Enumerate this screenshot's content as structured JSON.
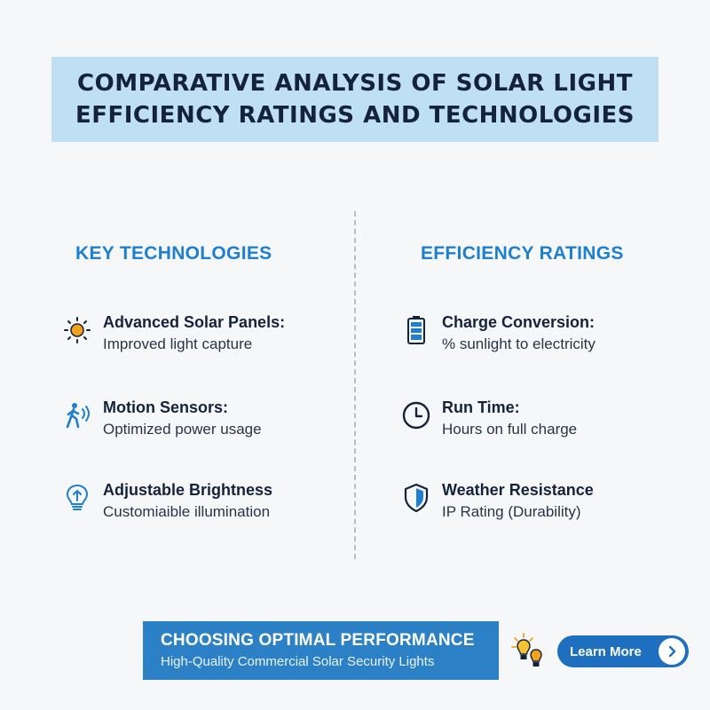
{
  "title": {
    "line1": "COMPARATIVE ANALYSIS OF SOLAR LIGHT",
    "line2": "EFFICIENCY RATINGS AND TECHNOLOGIES"
  },
  "left_column": {
    "heading": "KEY TECHNOLOGIES",
    "items": [
      {
        "label": "Advanced Solar Panels:",
        "desc": "Improved light capture",
        "icon": "sun-icon"
      },
      {
        "label": "Motion Sensors:",
        "desc": "Optimized power usage",
        "icon": "motion-sensor-icon"
      },
      {
        "label": "Adjustable Brightness",
        "desc": "Customiaible illumination",
        "icon": "lightbulb-icon"
      }
    ]
  },
  "right_column": {
    "heading": "EFFICIENCY RATINGS",
    "items": [
      {
        "label": "Charge Conversion:",
        "desc": "% sunlight to electricity",
        "icon": "battery-icon"
      },
      {
        "label": "Run Time:",
        "desc": "Hours on full charge",
        "icon": "clock-icon"
      },
      {
        "label": "Weather Resistance",
        "desc": "IP Rating (Durability)",
        "icon": "shield-icon"
      }
    ]
  },
  "cta": {
    "title": "CHOOSING OPTIMAL PERFORMANCE",
    "subtitle": "High-Quality Commercial Solar Security Lights",
    "button_label": "Learn More"
  },
  "colors": {
    "accent_blue": "#1e7fd0",
    "banner_bg": "#bfe0f2",
    "cta_bg": "#2b80c6",
    "sun_orange": "#f2a21c",
    "icon_blue": "#1e7fd0",
    "icon_navy": "#14233b"
  }
}
